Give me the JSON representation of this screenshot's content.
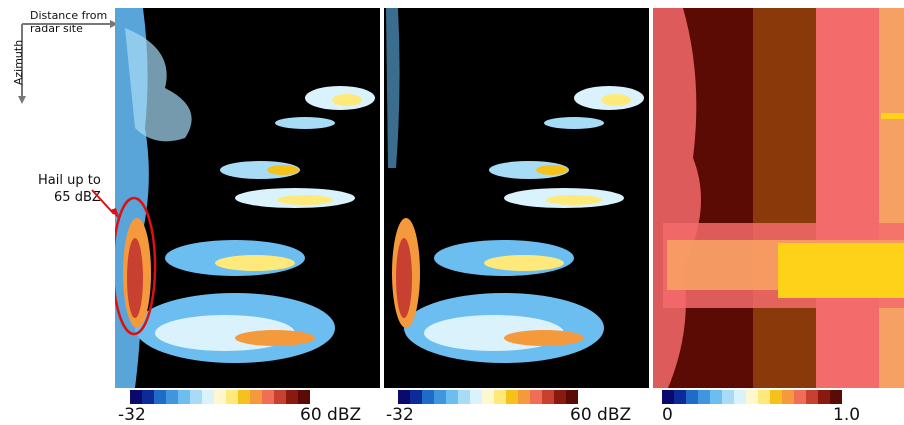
{
  "axes": {
    "x_label_line1": "Distance from",
    "x_label_line2": "radar site",
    "y_label": "Azimuth"
  },
  "annotation": {
    "line1": "Hail up to",
    "line2": "65 dBZ",
    "color": "#dd1111"
  },
  "panels": [
    {
      "colorbar": {
        "min_label": "-32",
        "max_label": "60 dBZ"
      }
    },
    {
      "colorbar": {
        "min_label": "-32",
        "max_label": "60 dBZ"
      }
    },
    {
      "colorbar": {
        "min_label": "0",
        "max_label": "1.0"
      }
    }
  ],
  "colormap": [
    "#0a0a6e",
    "#0d2a9a",
    "#1f6bc8",
    "#3f96dd",
    "#6cbdf0",
    "#a8dcf6",
    "#d9f2fb",
    "#fff8cf",
    "#ffe97a",
    "#f5c21c",
    "#f59a3c",
    "#f06e55",
    "#c8402f",
    "#8a1a10",
    "#5a0b05"
  ],
  "theme": {
    "background": "#000000",
    "clutter": "#63b6ef",
    "quality_dark": "#5c0a04",
    "quality_mid": "#8a3a0a",
    "quality_light": "#f36b6b",
    "quality_orange": "#f7a063",
    "quality_yellow": "#ffd21a"
  }
}
